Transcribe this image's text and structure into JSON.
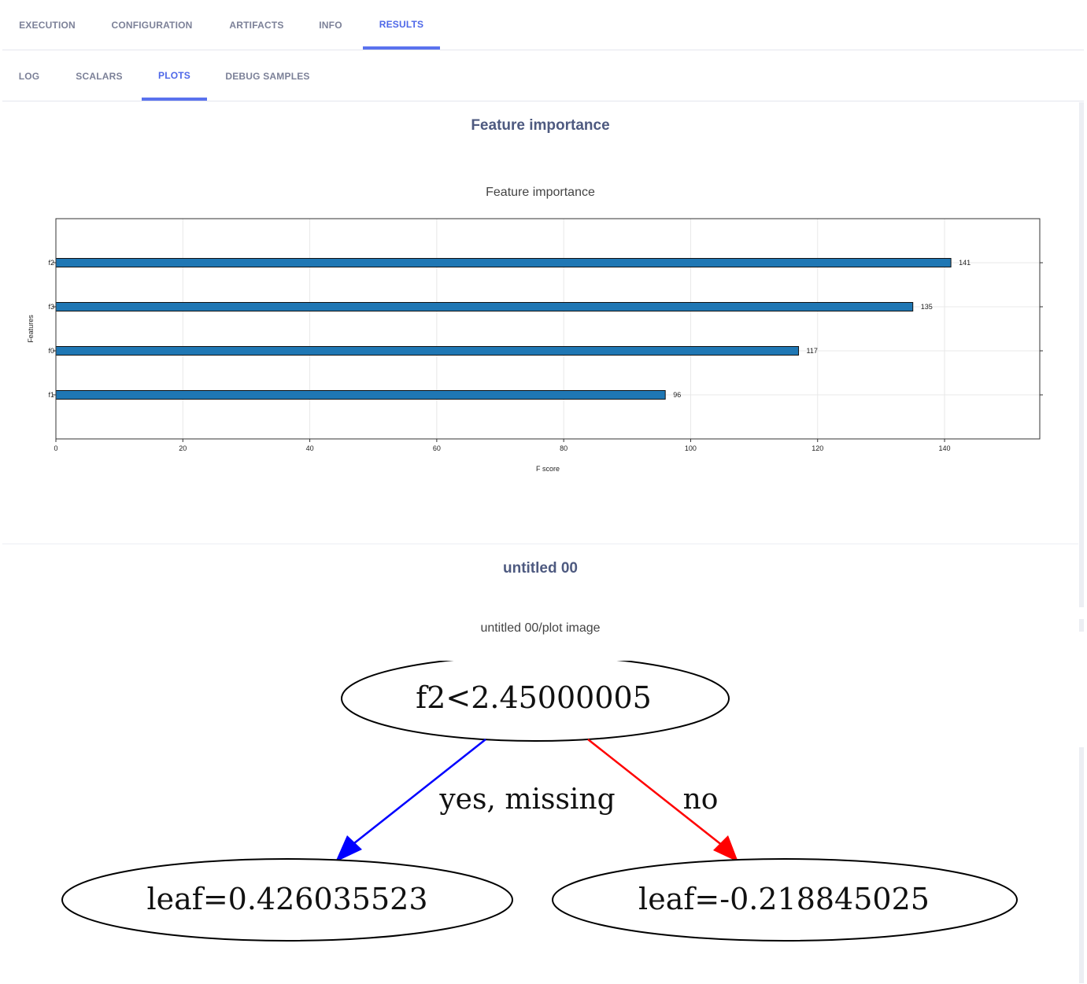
{
  "tabs": [
    {
      "label": "EXECUTION",
      "active": false
    },
    {
      "label": "CONFIGURATION",
      "active": false
    },
    {
      "label": "ARTIFACTS",
      "active": false
    },
    {
      "label": "INFO",
      "active": false
    },
    {
      "label": "RESULTS",
      "active": true
    }
  ],
  "subtabs": [
    {
      "label": "LOG",
      "active": false
    },
    {
      "label": "SCALARS",
      "active": false
    },
    {
      "label": "PLOTS",
      "active": true
    },
    {
      "label": "DEBUG SAMPLES",
      "active": false
    }
  ],
  "plots": [
    {
      "section_title": "Feature importance",
      "plot_title": "Feature importance"
    },
    {
      "section_title": "untitled 00",
      "plot_title": "untitled 00/plot image"
    }
  ],
  "chart_data": {
    "type": "bar",
    "orientation": "horizontal",
    "title": "Feature importance",
    "xlabel": "F score",
    "ylabel": "Features",
    "categories": [
      "f2",
      "f3",
      "f0",
      "f1"
    ],
    "values": [
      141,
      135,
      117,
      96
    ],
    "data_labels": [
      "141",
      "135",
      "117",
      "96"
    ],
    "xlim": [
      0,
      155
    ],
    "xticks": [
      0,
      20,
      40,
      60,
      80,
      100,
      120,
      140
    ],
    "grid": true,
    "bar_color": "#1f77b4"
  },
  "tree": {
    "root": "f2<2.45000005",
    "left_edge": "yes, missing",
    "right_edge": "no",
    "left_leaf": "leaf=0.426035523",
    "right_leaf": "leaf=-0.218845025",
    "left_color": "#0000ff",
    "right_color": "#ff0000"
  },
  "colors": {
    "accent": "#5a72ee",
    "tab_text": "#7c8198",
    "section_title": "#4e5a80"
  }
}
